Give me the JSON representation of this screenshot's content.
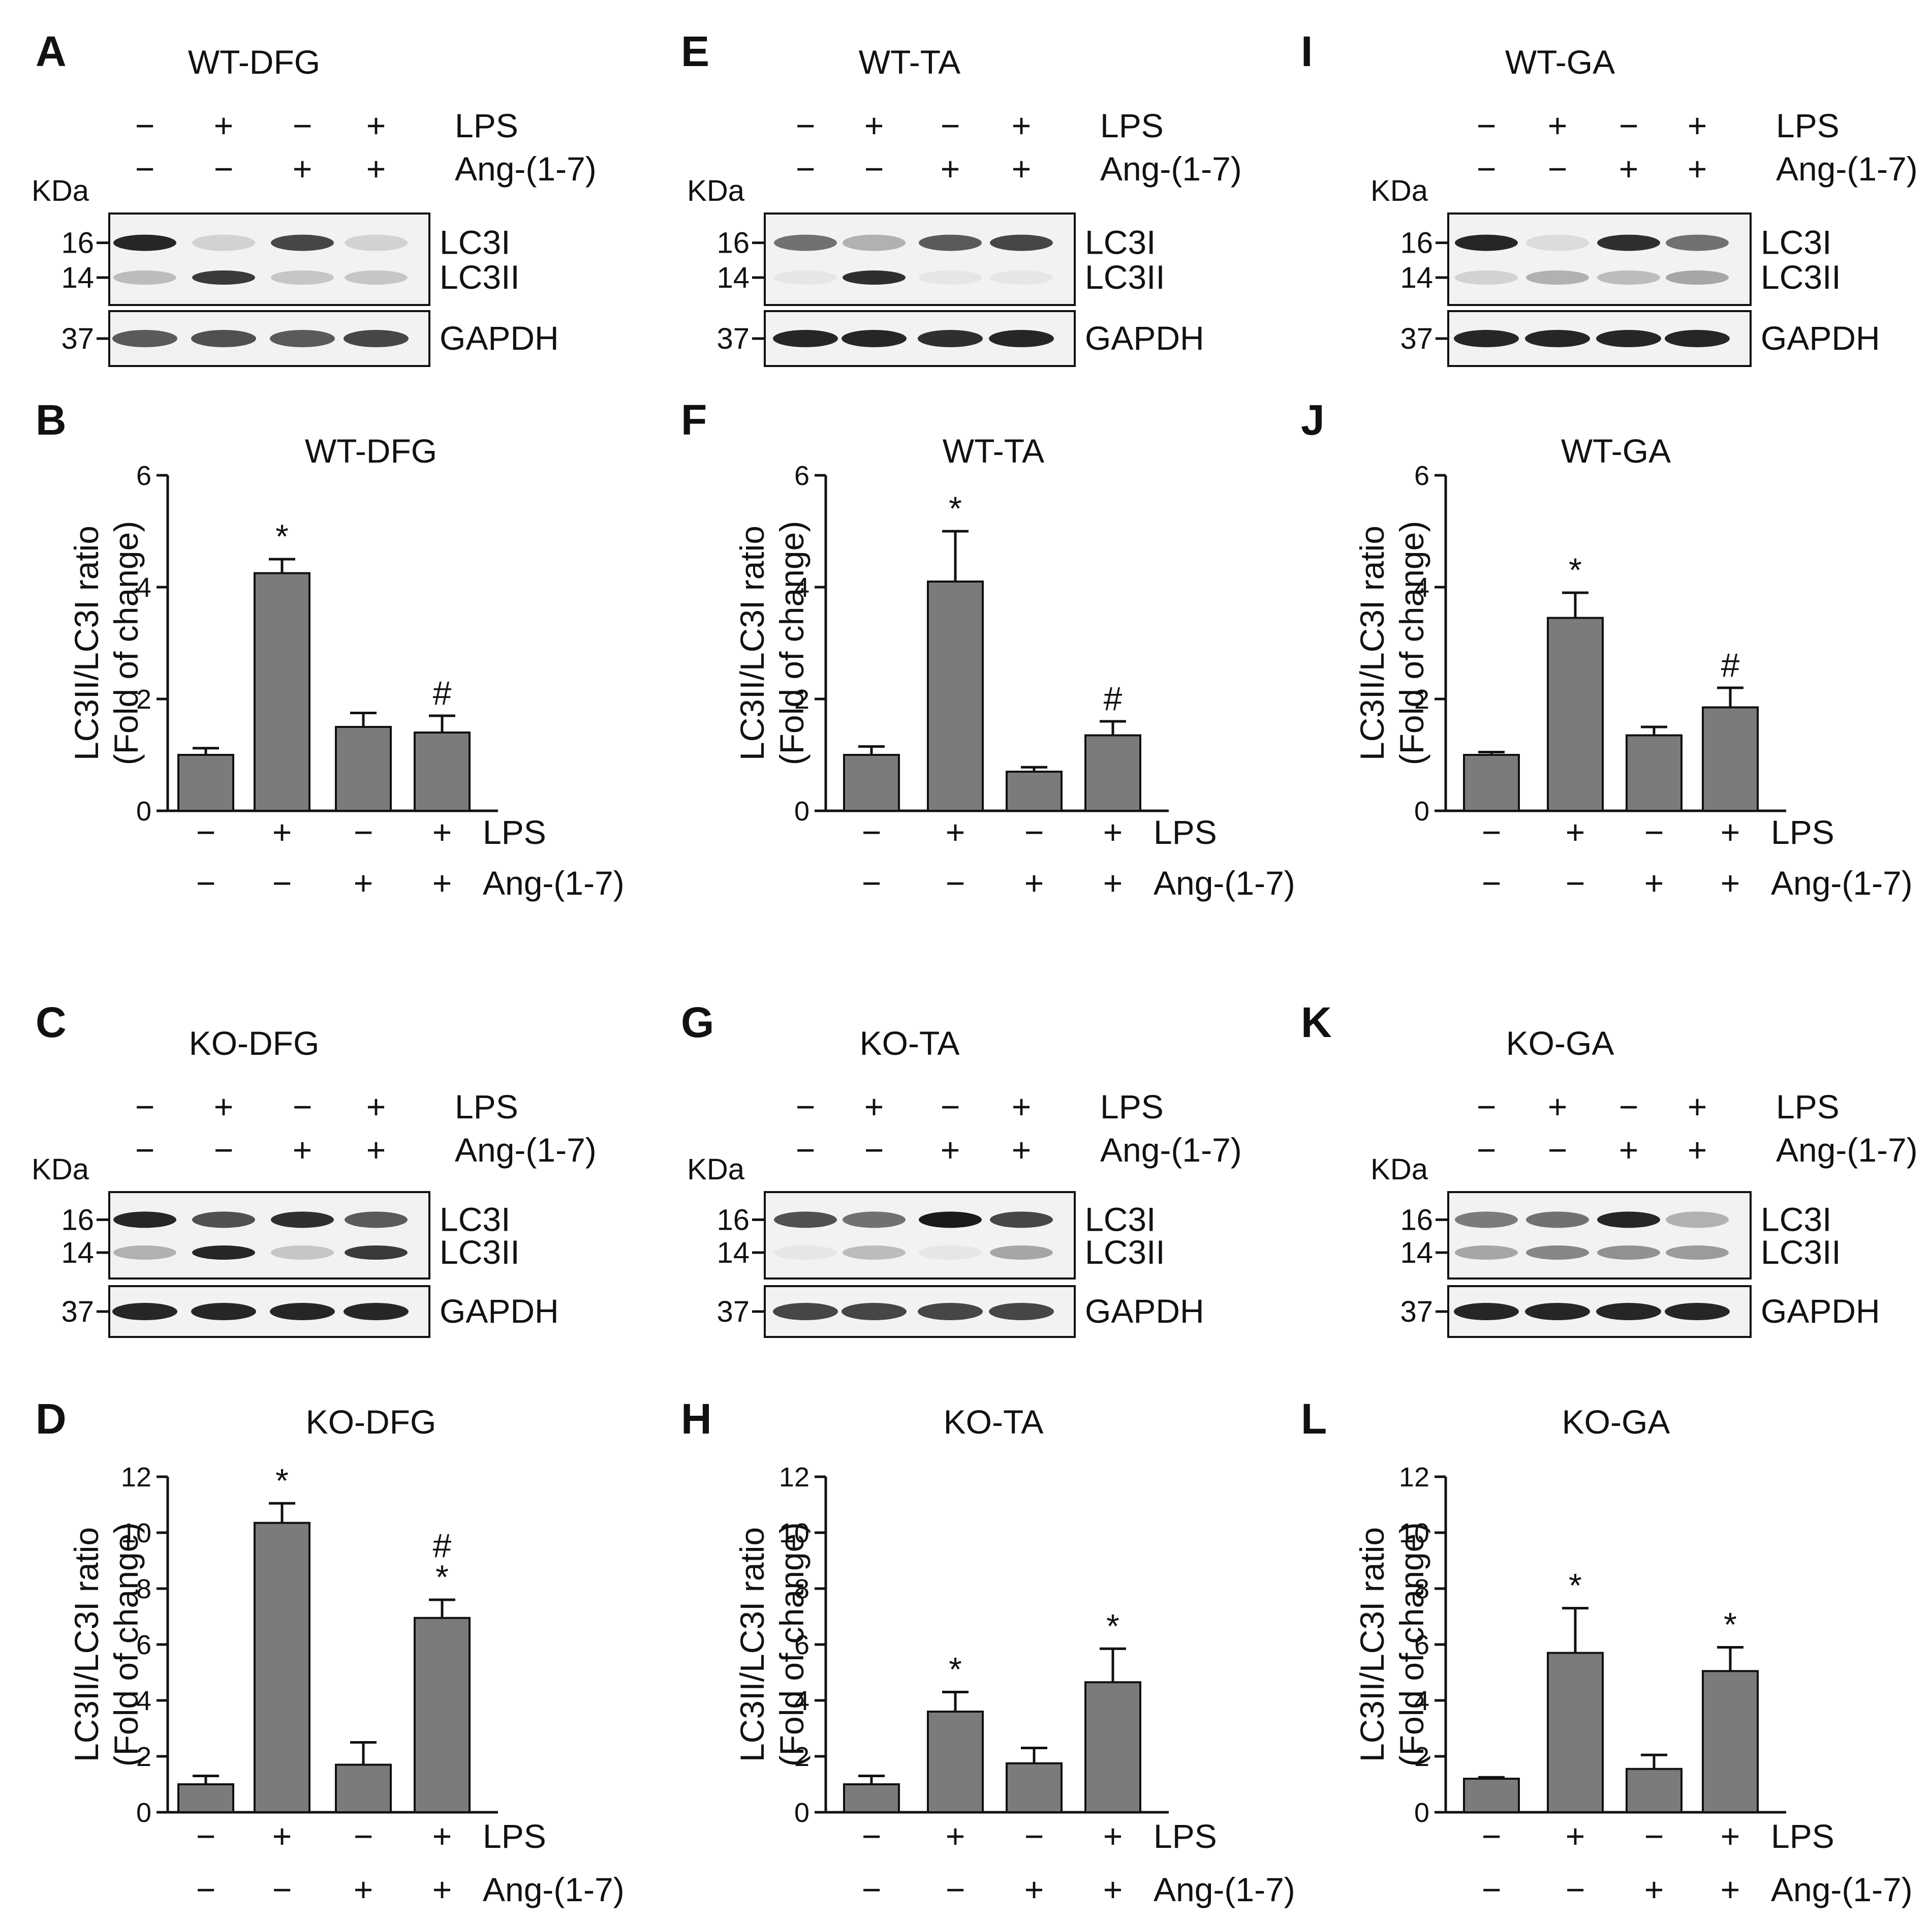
{
  "colors": {
    "bar": "#7b7b7b",
    "ink": "#111111",
    "blot_bg": "#f2f2f2",
    "band": "#1a1a1a"
  },
  "labels": {
    "lps": "LPS",
    "ang": "Ang-(1-7)",
    "kda": "KDa",
    "lc3i": "LC3I",
    "lc3ii": "LC3II",
    "gapdh": "GAPDH",
    "m16": "16",
    "m14": "14",
    "m37": "37"
  },
  "signs": {
    "lps": [
      "−",
      "+",
      "−",
      "+"
    ],
    "ang": [
      "−",
      "−",
      "+",
      "+"
    ]
  },
  "yaxis_label": [
    "LC3II/LC3I ratio",
    "(Fold of change)"
  ],
  "blots": [
    {
      "letter": "A",
      "title": "WT-DFG",
      "lc3i": [
        0.95,
        0.15,
        0.8,
        0.15
      ],
      "lc3ii": [
        0.25,
        0.85,
        0.2,
        0.2
      ],
      "gapdh": [
        0.7,
        0.75,
        0.7,
        0.8
      ]
    },
    {
      "letter": "E",
      "title": "WT-TA",
      "lc3i": [
        0.6,
        0.3,
        0.7,
        0.8
      ],
      "lc3ii": [
        0.05,
        0.9,
        0.05,
        0.05
      ],
      "gapdh": [
        0.95,
        0.95,
        0.9,
        0.95
      ]
    },
    {
      "letter": "I",
      "title": "WT-GA",
      "lc3i": [
        0.95,
        0.1,
        0.9,
        0.6
      ],
      "lc3ii": [
        0.15,
        0.3,
        0.25,
        0.35
      ],
      "gapdh": [
        0.95,
        0.95,
        0.95,
        0.95
      ]
    },
    {
      "letter": "C",
      "title": "KO-DFG",
      "lc3i": [
        0.95,
        0.75,
        0.9,
        0.7
      ],
      "lc3ii": [
        0.3,
        0.95,
        0.2,
        0.85
      ],
      "gapdh": [
        0.95,
        0.95,
        0.95,
        0.95
      ]
    },
    {
      "letter": "G",
      "title": "KO-TA",
      "lc3i": [
        0.75,
        0.6,
        1.0,
        0.8
      ],
      "lc3ii": [
        0.05,
        0.25,
        0.05,
        0.35
      ],
      "gapdh": [
        0.8,
        0.8,
        0.8,
        0.8
      ]
    },
    {
      "letter": "K",
      "title": "KO-GA",
      "lc3i": [
        0.55,
        0.6,
        0.95,
        0.3
      ],
      "lc3ii": [
        0.35,
        0.5,
        0.45,
        0.4
      ],
      "gapdh": [
        0.95,
        0.95,
        0.95,
        0.95
      ]
    }
  ],
  "chart_data": [
    {
      "letter": "B",
      "type": "bar",
      "title": "WT-DFG",
      "ylim": [
        0,
        6
      ],
      "yticks": [
        0,
        2,
        4,
        6
      ],
      "values": [
        1.0,
        4.25,
        1.5,
        1.4
      ],
      "errors": [
        0.12,
        0.25,
        0.25,
        0.3
      ],
      "annotations": [
        "",
        "*",
        "",
        "#"
      ]
    },
    {
      "letter": "F",
      "type": "bar",
      "title": "WT-TA",
      "ylim": [
        0,
        6
      ],
      "yticks": [
        0,
        2,
        4,
        6
      ],
      "values": [
        1.0,
        4.1,
        0.7,
        1.35
      ],
      "errors": [
        0.15,
        0.9,
        0.08,
        0.25
      ],
      "annotations": [
        "",
        "*",
        "",
        "#"
      ]
    },
    {
      "letter": "J",
      "type": "bar",
      "title": "WT-GA",
      "ylim": [
        0,
        6
      ],
      "yticks": [
        0,
        2,
        4,
        6
      ],
      "values": [
        1.0,
        3.45,
        1.35,
        1.85
      ],
      "errors": [
        0.05,
        0.45,
        0.15,
        0.35
      ],
      "annotations": [
        "",
        "*",
        "",
        "#"
      ]
    },
    {
      "letter": "D",
      "type": "bar",
      "title": "KO-DFG",
      "ylim": [
        0,
        12
      ],
      "yticks": [
        0,
        2,
        4,
        6,
        8,
        10,
        12
      ],
      "values": [
        1.0,
        10.35,
        1.7,
        6.95
      ],
      "errors": [
        0.3,
        0.7,
        0.8,
        0.65
      ],
      "annotations": [
        "",
        "*",
        "",
        "#\n*"
      ]
    },
    {
      "letter": "H",
      "type": "bar",
      "title": "KO-TA",
      "ylim": [
        0,
        12
      ],
      "yticks": [
        0,
        2,
        4,
        6,
        8,
        10,
        12
      ],
      "values": [
        1.0,
        3.6,
        1.75,
        4.65
      ],
      "errors": [
        0.3,
        0.7,
        0.55,
        1.2
      ],
      "annotations": [
        "",
        "*",
        "",
        "*"
      ]
    },
    {
      "letter": "L",
      "type": "bar",
      "title": "KO-GA",
      "ylim": [
        0,
        12
      ],
      "yticks": [
        0,
        2,
        4,
        6,
        8,
        10,
        12
      ],
      "values": [
        1.2,
        5.7,
        1.55,
        5.05
      ],
      "errors": [
        0.05,
        1.6,
        0.5,
        0.85
      ],
      "annotations": [
        "",
        "*",
        "",
        "*"
      ]
    }
  ]
}
